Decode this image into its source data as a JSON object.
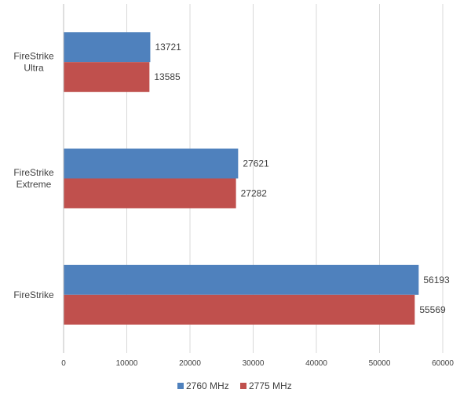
{
  "chart_data": {
    "type": "bar",
    "orientation": "horizontal",
    "categories": [
      "FireStrike Ultra",
      "FireStrike Extreme",
      "FireStrike"
    ],
    "series": [
      {
        "name": "2760 MHz",
        "color": "#4f81bd",
        "values": [
          13721,
          27621,
          56193
        ]
      },
      {
        "name": "2775 MHz",
        "color": "#c0504d",
        "values": [
          13585,
          27282,
          55569
        ]
      }
    ],
    "xlim": [
      0,
      60000
    ],
    "xticks": [
      0,
      10000,
      20000,
      30000,
      40000,
      50000,
      60000
    ],
    "grid": "vertical",
    "legend": "bottom-center",
    "data_labels": true
  }
}
